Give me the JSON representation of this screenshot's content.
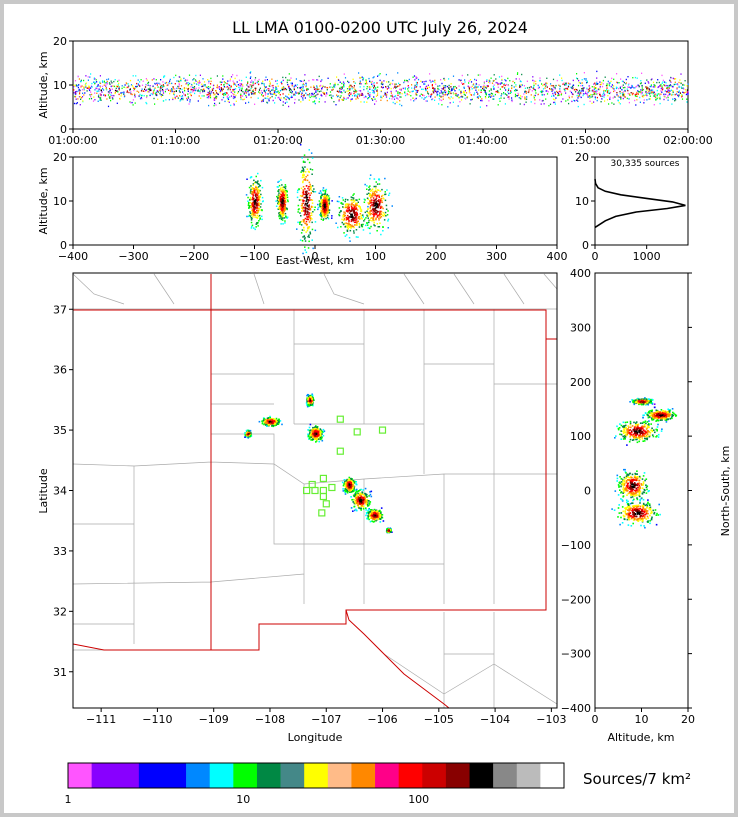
{
  "title": "LL LMA 0100-0200 UTC July 26, 2024",
  "colorbar_label": "Sources/7 km²",
  "total_label": "30,335 sources",
  "colors": {
    "colorbar": [
      "#ff55ff",
      "#8800ff",
      "#8800ff",
      "#0000ff",
      "#0000ff",
      "#0088ff",
      "#00ffff",
      "#00ff00",
      "#008844",
      "#448888",
      "#ffff00",
      "#ffbb88",
      "#ff8800",
      "#ff0088",
      "#ff0000",
      "#cc0000",
      "#880000",
      "#000000",
      "#888888",
      "#bbbbbb",
      "#ffffff"
    ],
    "map_boundary": "#cc0000",
    "map_lines": "#aaaaaa",
    "stations": "#66ee33"
  },
  "chart_data": [
    {
      "type": "scatter",
      "panel": "time-altitude",
      "xlabel": "",
      "ylabel": "Altitude, km",
      "xlim": [
        "01:00:00",
        "02:00:00"
      ],
      "ylim": [
        0,
        20
      ],
      "x_ticks": [
        "01:00:00",
        "01:10:00",
        "01:20:00",
        "01:30:00",
        "01:40:00",
        "01:50:00",
        "02:00:00"
      ],
      "y_ticks": [
        "0",
        "10",
        "20"
      ]
    },
    {
      "type": "heatmap",
      "panel": "east-west-altitude",
      "xlabel": "East-West, km",
      "ylabel": "Altitude, km",
      "xlim": [
        -400,
        400
      ],
      "ylim": [
        0,
        20
      ],
      "x_ticks": [
        "−400",
        "−300",
        "−200",
        "−100",
        "0",
        "100",
        "200",
        "300",
        "400"
      ],
      "y_ticks": [
        "0",
        "10",
        "20"
      ],
      "clusters": [
        {
          "x": -100,
          "y": 10,
          "dx": 10,
          "dy": 5
        },
        {
          "x": -55,
          "y": 10,
          "dx": 8,
          "dy": 4
        },
        {
          "x": -15,
          "y": 10,
          "dx": 12,
          "dy": 9
        },
        {
          "x": 15,
          "y": 9,
          "dx": 8,
          "dy": 3
        },
        {
          "x": 60,
          "y": 7,
          "dx": 20,
          "dy": 4
        },
        {
          "x": 100,
          "y": 9,
          "dx": 18,
          "dy": 5
        }
      ]
    },
    {
      "type": "line",
      "panel": "altitude-histogram",
      "xlim": [
        0,
        1800
      ],
      "ylim": [
        0,
        20
      ],
      "x_ticks": [
        "0",
        "1000"
      ],
      "y_ticks": [
        "0",
        "10",
        "20"
      ],
      "profile": [
        [
          0,
          4
        ],
        [
          200,
          5.5
        ],
        [
          400,
          6.5
        ],
        [
          800,
          7.5
        ],
        [
          1400,
          8.3
        ],
        [
          1750,
          9
        ],
        [
          1500,
          9.8
        ],
        [
          1000,
          10.6
        ],
        [
          500,
          11.4
        ],
        [
          200,
          12.2
        ],
        [
          60,
          13
        ],
        [
          10,
          14
        ],
        [
          0,
          15
        ]
      ]
    },
    {
      "type": "heatmap",
      "panel": "plan-view",
      "xlabel": "Longitude",
      "ylabel": "Latitude",
      "xlim": [
        -111.5,
        -102.9
      ],
      "ylim": [
        30.4,
        37.6
      ],
      "x_ticks": [
        "−111",
        "−110",
        "−109",
        "−108",
        "−107",
        "−106",
        "−105",
        "−104",
        "−103"
      ],
      "y_ticks": [
        "31",
        "32",
        "33",
        "34",
        "35",
        "36",
        "37"
      ],
      "clusters": [
        {
          "lon": -107.2,
          "lat": 34.95,
          "dlon": 0.12,
          "dlat": 0.12
        },
        {
          "lon": -107.3,
          "lat": 35.5,
          "dlon": 0.06,
          "dlat": 0.08
        },
        {
          "lon": -108.0,
          "lat": 35.15,
          "dlon": 0.15,
          "dlat": 0.07
        },
        {
          "lon": -108.4,
          "lat": 34.95,
          "dlon": 0.05,
          "dlat": 0.05
        },
        {
          "lon": -106.6,
          "lat": 34.1,
          "dlon": 0.1,
          "dlat": 0.12
        },
        {
          "lon": -106.4,
          "lat": 33.85,
          "dlon": 0.15,
          "dlat": 0.15
        },
        {
          "lon": -106.15,
          "lat": 33.6,
          "dlon": 0.13,
          "dlat": 0.1
        },
        {
          "lon": -105.9,
          "lat": 33.35,
          "dlon": 0.04,
          "dlat": 0.03
        }
      ],
      "stations": [
        [
          -106.75,
          35.18
        ],
        [
          -106.45,
          34.97
        ],
        [
          -106.0,
          35.0
        ],
        [
          -106.75,
          34.65
        ],
        [
          -107.05,
          34.2
        ],
        [
          -107.25,
          34.1
        ],
        [
          -107.35,
          34.0
        ],
        [
          -107.2,
          34.0
        ],
        [
          -107.05,
          34.0
        ],
        [
          -106.9,
          34.05
        ],
        [
          -107.05,
          33.9
        ],
        [
          -107.0,
          33.78
        ],
        [
          -107.08,
          33.63
        ]
      ]
    },
    {
      "type": "heatmap",
      "panel": "altitude-north-south",
      "xlabel": "Altitude, km",
      "ylabel": "North-South, km",
      "xlim": [
        0,
        20
      ],
      "ylim": [
        -400,
        400
      ],
      "x_ticks": [
        "0",
        "10",
        "20"
      ],
      "y_ticks": [
        "−400",
        "−300",
        "−200",
        "−100",
        "0",
        "100",
        "200",
        "300",
        "400"
      ],
      "clusters": [
        {
          "alt": 10,
          "y": 165,
          "dalt": 2,
          "dy": 5
        },
        {
          "alt": 9,
          "y": 110,
          "dalt": 4,
          "dy": 18
        },
        {
          "alt": 14,
          "y": 140,
          "dalt": 3,
          "dy": 10
        },
        {
          "alt": 8,
          "y": 10,
          "dalt": 3,
          "dy": 25
        },
        {
          "alt": 9,
          "y": -40,
          "dalt": 4,
          "dy": 20
        }
      ]
    }
  ],
  "colorbar_ticks": [
    "1",
    "10",
    "100"
  ]
}
